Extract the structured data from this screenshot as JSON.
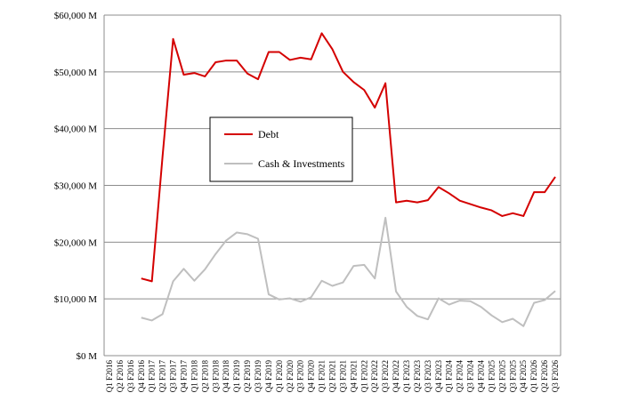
{
  "chart_data": {
    "type": "line",
    "title": "",
    "xlabel": "",
    "ylabel": "",
    "ylim": [
      0,
      60000
    ],
    "yticks": [
      {
        "value": 0,
        "label": "$0 M"
      },
      {
        "value": 10000,
        "label": "$10,000 M"
      },
      {
        "value": 20000,
        "label": "$20,000 M"
      },
      {
        "value": 30000,
        "label": "$30,000 M"
      },
      {
        "value": 40000,
        "label": "$40,000 M"
      },
      {
        "value": 50000,
        "label": "$50,000 M"
      },
      {
        "value": 60000,
        "label": "$60,000 M"
      }
    ],
    "grid": true,
    "legend_position": "center-left",
    "categories": [
      "Q1 F2016",
      "Q2 F2016",
      "Q3 F2016",
      "Q4 F2016",
      "Q1 F2017",
      "Q2 F2017",
      "Q3 F2017",
      "Q4 F2017",
      "Q1 F2018",
      "Q2 F2018",
      "Q3 F2018",
      "Q4 F2018",
      "Q1 F2019",
      "Q2 F2019",
      "Q3 F2019",
      "Q4 F2019",
      "Q1 F2020",
      "Q2 F2020",
      "Q3 F2020",
      "Q4 F2020",
      "Q1 F2021",
      "Q2 F2021",
      "Q3 F2021",
      "Q4 F2021",
      "Q1 F2022",
      "Q2 F2022",
      "Q3 F2022",
      "Q4 F2022",
      "Q1 F2023",
      "Q2 F2023",
      "Q3 F2023",
      "Q4 F2023",
      "Q1 F2024",
      "Q2 F2024",
      "Q3 F2024",
      "Q4 F2024",
      "Q1 F2025",
      "Q2 F2025",
      "Q3 F2025",
      "Q4 F2025",
      "Q1 F2026",
      "Q2 F2026",
      "Q3 F2026"
    ],
    "series": [
      {
        "name": "Debt",
        "color": "#d40000",
        "values": [
          null,
          null,
          null,
          13600,
          13100,
          35000,
          55800,
          49500,
          49800,
          49200,
          51700,
          52000,
          52000,
          49700,
          48700,
          53500,
          53500,
          52100,
          52500,
          52200,
          56800,
          54000,
          50000,
          48200,
          46800,
          43700,
          48000,
          27000,
          27300,
          27000,
          27400,
          29700,
          28600,
          27300,
          26700,
          26100,
          25600,
          24600,
          25100,
          24600,
          28800,
          28800,
          31500
        ]
      },
      {
        "name": "Cash & Investments",
        "color": "#bfbfbf",
        "values": [
          null,
          null,
          null,
          6700,
          6200,
          7300,
          13100,
          15300,
          13200,
          15200,
          17900,
          20300,
          21700,
          21400,
          20600,
          10800,
          9900,
          10100,
          9500,
          10300,
          13200,
          12300,
          12900,
          15800,
          16000,
          13600,
          24300,
          11300,
          8600,
          7000,
          6400,
          10100,
          9000,
          9700,
          9600,
          8600,
          7100,
          5900,
          6500,
          5200,
          9300,
          9800,
          11400
        ]
      }
    ]
  }
}
